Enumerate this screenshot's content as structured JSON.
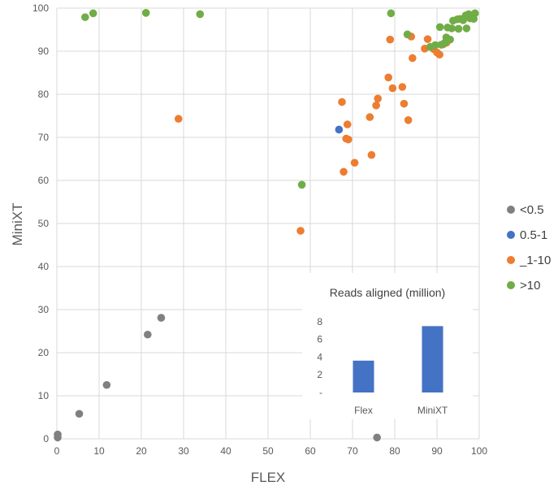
{
  "chart_data": [
    {
      "type": "scatter",
      "title": "",
      "xlabel": "FLEX",
      "ylabel": "MiniXT",
      "xlim": [
        0,
        100
      ],
      "ylim": [
        0,
        100
      ],
      "x_ticks": [
        "0",
        "10",
        "20",
        "30",
        "40",
        "50",
        "60",
        "70",
        "80",
        "90",
        "100"
      ],
      "y_ticks": [
        "0",
        "10",
        "20",
        "30",
        "40",
        "50",
        "60",
        "70",
        "80",
        "90",
        "100"
      ],
      "grid": "both",
      "legend_position": "right",
      "series": [
        {
          "name": "<0.5",
          "color": "#808080",
          "points": [
            [
              0.2,
              0.3
            ],
            [
              0.2,
              1.0
            ],
            [
              5.3,
              5.8
            ],
            [
              11.8,
              12.5
            ],
            [
              21.5,
              24.2
            ],
            [
              24.7,
              28.1
            ],
            [
              75.8,
              0.3
            ]
          ]
        },
        {
          "name": "0.5-1",
          "color": "#4472c4",
          "points": [
            [
              66.8,
              71.8
            ]
          ]
        },
        {
          "name": "_1-10",
          "color": "#ed7d31",
          "points": [
            [
              28.8,
              74.3
            ],
            [
              57.7,
              48.3
            ],
            [
              67.5,
              78.2
            ],
            [
              67.9,
              62.0
            ],
            [
              68.5,
              69.7
            ],
            [
              68.8,
              73.0
            ],
            [
              69.0,
              69.5
            ],
            [
              70.5,
              64.1
            ],
            [
              74.1,
              74.7
            ],
            [
              74.5,
              65.9
            ],
            [
              75.6,
              77.4
            ],
            [
              76.0,
              79.0
            ],
            [
              78.5,
              83.9
            ],
            [
              78.9,
              92.7
            ],
            [
              79.5,
              81.4
            ],
            [
              81.8,
              81.7
            ],
            [
              82.2,
              77.8
            ],
            [
              83.2,
              74.0
            ],
            [
              83.9,
              93.4
            ],
            [
              84.2,
              88.4
            ],
            [
              87.1,
              90.6
            ],
            [
              87.8,
              92.8
            ],
            [
              89.2,
              90.5
            ],
            [
              90.0,
              89.7
            ],
            [
              90.6,
              89.2
            ],
            [
              91.5,
              91.6
            ],
            [
              92.3,
              92.0
            ]
          ]
        },
        {
          "name": ">10",
          "color": "#70ad47",
          "points": [
            [
              6.7,
              97.9
            ],
            [
              8.6,
              98.8
            ],
            [
              21.1,
              98.9
            ],
            [
              33.9,
              98.6
            ],
            [
              58.0,
              59.0
            ],
            [
              79.1,
              98.8
            ],
            [
              83.0,
              93.9
            ],
            [
              88.4,
              91.0
            ],
            [
              89.6,
              91.4
            ],
            [
              90.7,
              95.6
            ],
            [
              91.0,
              91.5
            ],
            [
              91.8,
              91.9
            ],
            [
              92.2,
              93.2
            ],
            [
              92.5,
              95.5
            ],
            [
              93.1,
              92.7
            ],
            [
              93.5,
              95.3
            ],
            [
              93.8,
              97.1
            ],
            [
              94.8,
              97.4
            ],
            [
              95.1,
              95.2
            ],
            [
              95.5,
              97.5
            ],
            [
              96.2,
              97.2
            ],
            [
              96.8,
              98.3
            ],
            [
              97.0,
              95.3
            ],
            [
              97.3,
              97.9
            ],
            [
              97.5,
              98.6
            ],
            [
              97.9,
              97.6
            ],
            [
              98.2,
              98.3
            ],
            [
              98.5,
              98.0
            ],
            [
              98.7,
              97.5
            ],
            [
              99.0,
              98.8
            ]
          ]
        }
      ]
    },
    {
      "type": "bar",
      "title": "Reads aligned (million)",
      "categories": [
        "Flex",
        "MiniXT"
      ],
      "values": [
        3.6,
        7.5
      ],
      "ylim": [
        0,
        9
      ],
      "y_ticks": [
        "-",
        "2",
        "4",
        "6",
        "8"
      ],
      "bar_color": "#4472c4",
      "grid": "none"
    }
  ]
}
